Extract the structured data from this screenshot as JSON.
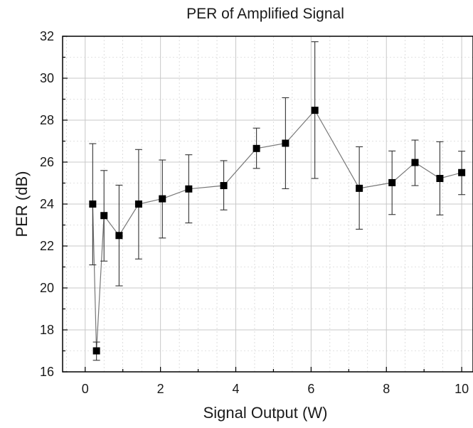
{
  "chart_data": {
    "type": "scatter",
    "title": "PER of Amplified Signal",
    "xlabel": "Signal Output (W)",
    "ylabel": "PER (dB)",
    "xlim": [
      -0.6,
      10.3
    ],
    "ylim": [
      16,
      32
    ],
    "xticks": [
      0,
      2,
      4,
      6,
      8,
      10
    ],
    "yticks": [
      16,
      18,
      20,
      22,
      24,
      26,
      28,
      30,
      32
    ],
    "grid": true,
    "connected_line": true,
    "marker": "square",
    "colors": {
      "marker": "#000000",
      "line": "#777777",
      "grid": "#c8c8c8",
      "axis": "#000000"
    },
    "series": [
      {
        "x": [
          0.2,
          0.3,
          0.5,
          0.9,
          1.42,
          2.05,
          2.75,
          3.68,
          4.55,
          5.32,
          6.1,
          7.28,
          8.15,
          8.76,
          9.42,
          10.0
        ],
        "y": [
          24.0,
          17.0,
          23.45,
          22.5,
          24.0,
          24.25,
          24.72,
          24.88,
          26.65,
          26.9,
          28.47,
          24.75,
          25.02,
          25.98,
          25.22,
          25.5
        ],
        "err_low": [
          21.1,
          16.55,
          21.28,
          20.1,
          21.38,
          22.38,
          23.1,
          23.72,
          25.7,
          24.73,
          25.22,
          22.8,
          23.5,
          24.88,
          23.48,
          24.45
        ],
        "err_high": [
          26.88,
          17.42,
          25.6,
          24.9,
          26.6,
          26.1,
          26.35,
          26.07,
          27.62,
          29.07,
          31.74,
          26.73,
          26.53,
          27.05,
          26.97,
          26.52
        ]
      }
    ]
  }
}
